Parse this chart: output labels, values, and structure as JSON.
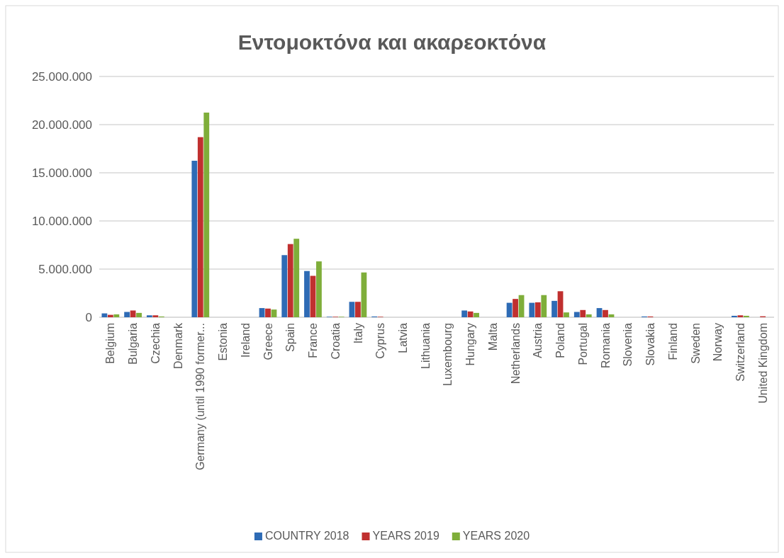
{
  "chart_data": {
    "type": "bar",
    "title": "Εντομοκτόνα και ακαρεοκτόνα",
    "categories": [
      "Belgium",
      "Bulgaria",
      "Czechia",
      "Denmark",
      "Germany (until 1990 former...",
      "Estonia",
      "Ireland",
      "Greece",
      "Spain",
      "France",
      "Croatia",
      "Italy",
      "Cyprus",
      "Latvia",
      "Lithuania",
      "Luxembourg",
      "Hungary",
      "Malta",
      "Netherlands",
      "Austria",
      "Poland",
      "Portugal",
      "Romania",
      "Slovenia",
      "Slovakia",
      "Finland",
      "Sweden",
      "Norway",
      "Switzerland",
      "United Kingdom"
    ],
    "series": [
      {
        "name": "COUNTRY 2018",
        "color": "#2e6bb5",
        "values": [
          400000,
          550000,
          200000,
          null,
          16250000,
          null,
          null,
          950000,
          6450000,
          4800000,
          50000,
          1600000,
          80000,
          null,
          null,
          null,
          700000,
          null,
          1500000,
          1500000,
          1700000,
          550000,
          950000,
          null,
          80000,
          null,
          null,
          null,
          150000,
          null
        ]
      },
      {
        "name": "YEARS 2019",
        "color": "#c0302f",
        "values": [
          250000,
          700000,
          200000,
          null,
          18700000,
          null,
          null,
          900000,
          7600000,
          4300000,
          50000,
          1600000,
          50000,
          null,
          null,
          null,
          600000,
          null,
          1900000,
          1550000,
          2700000,
          750000,
          750000,
          null,
          80000,
          null,
          null,
          null,
          200000,
          100000
        ]
      },
      {
        "name": "YEARS 2020",
        "color": "#7fae3a",
        "values": [
          300000,
          450000,
          80000,
          null,
          21250000,
          null,
          null,
          800000,
          8150000,
          5800000,
          50000,
          4650000,
          null,
          null,
          null,
          null,
          450000,
          null,
          2300000,
          2300000,
          500000,
          300000,
          300000,
          null,
          null,
          null,
          null,
          null,
          150000,
          null
        ]
      }
    ],
    "ylim": [
      0,
      25000000
    ],
    "yticks": [
      {
        "value": 0,
        "label": "0"
      },
      {
        "value": 5000000,
        "label": "5.000.000"
      },
      {
        "value": 10000000,
        "label": "10.000.000"
      },
      {
        "value": 15000000,
        "label": "15.000.000"
      },
      {
        "value": 20000000,
        "label": "20.000.000"
      },
      {
        "value": 25000000,
        "label": "25.000.000"
      }
    ],
    "grid": "y",
    "legend": "bottom"
  }
}
